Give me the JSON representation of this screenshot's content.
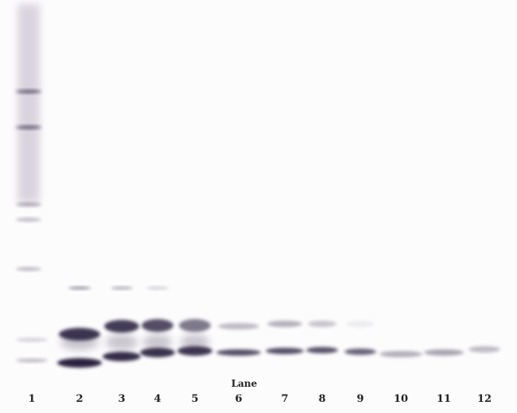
{
  "axis_label": "Lane",
  "lanes": [
    "1",
    "2",
    "3",
    "4",
    "5",
    "6",
    "7",
    "8",
    "9",
    "10",
    "11",
    "12"
  ],
  "band_color": "#2a2440",
  "lower_band_intensity": [
    0.25,
    1.0,
    0.95,
    0.92,
    0.9,
    0.8,
    0.8,
    0.78,
    0.7,
    0.35,
    0.4,
    0.3
  ],
  "upper_band_intensity": [
    0.15,
    0.9,
    0.88,
    0.8,
    0.6,
    0.3,
    0.35,
    0.25,
    0.08,
    0,
    0,
    0
  ],
  "top_band_intensity": [
    0.2,
    0.45,
    0.35,
    0.2,
    0,
    0,
    0,
    0,
    0,
    0,
    0,
    0
  ]
}
